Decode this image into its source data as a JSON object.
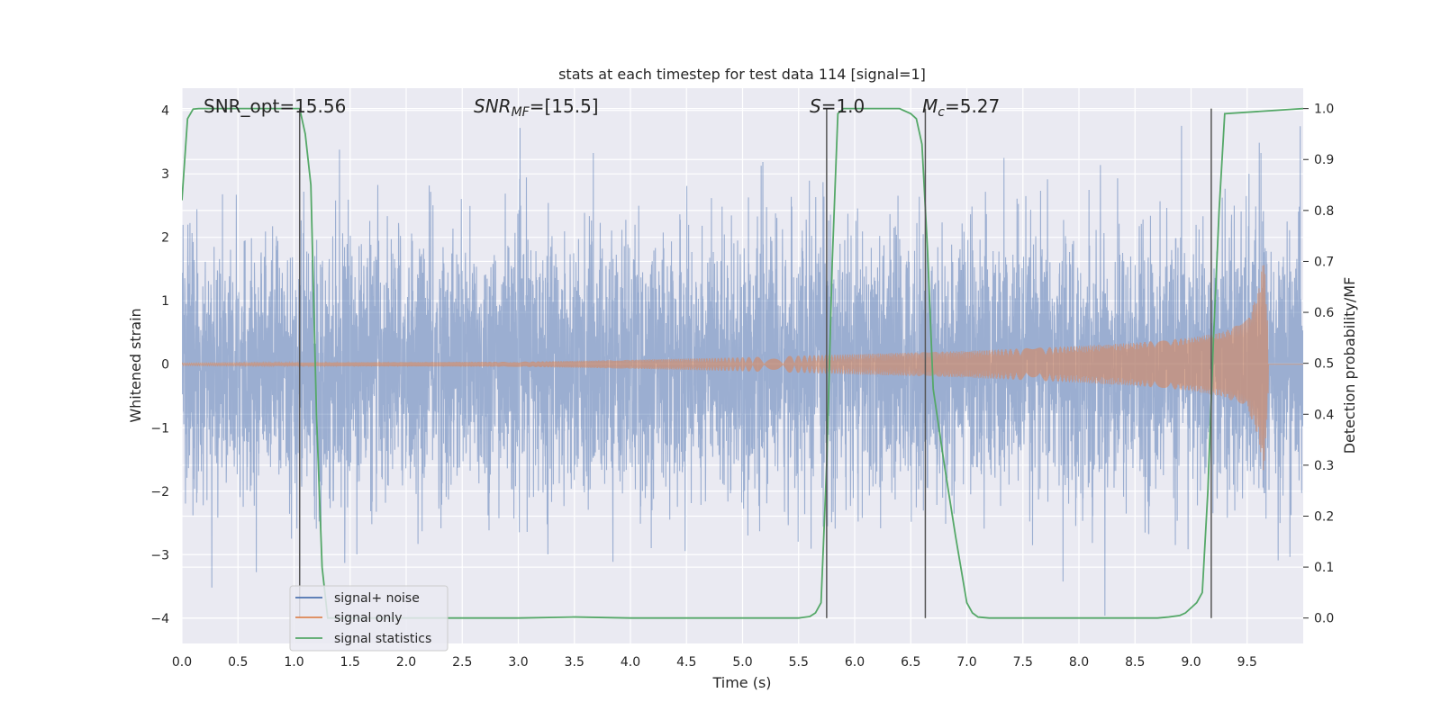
{
  "chart_data": {
    "type": "line",
    "title": "stats at each timestep for test data 114 [signal=1]",
    "xlabel": "Time (s)",
    "ylabel": "Whitened strain",
    "ylabel_right": "Detection probability/MF",
    "xlim": [
      0.0,
      10.0
    ],
    "ylim": [
      -4.4,
      4.35
    ],
    "ylim_right": [
      -0.05,
      1.04
    ],
    "x_ticks": [
      "0.0",
      "0.5",
      "1.0",
      "1.5",
      "2.0",
      "2.5",
      "3.0",
      "3.5",
      "4.0",
      "4.5",
      "5.0",
      "5.5",
      "6.0",
      "6.5",
      "7.0",
      "7.5",
      "8.0",
      "8.5",
      "9.0",
      "9.5"
    ],
    "y_ticks": [
      "4",
      "3",
      "2",
      "1",
      "0",
      "−1",
      "−2",
      "−3",
      "−4"
    ],
    "y_ticks_right": [
      "1.0",
      "0.9",
      "0.8",
      "0.7",
      "0.6",
      "0.5",
      "0.4",
      "0.3",
      "0.2",
      "0.1",
      "0.0"
    ],
    "annotations": {
      "snr_opt": "SNR_opt=15.56",
      "snr_mf_main": "SNR",
      "snr_mf_sub": "MF",
      "snr_mf_val": "=[15.5]",
      "s_main": "S",
      "s_val": "=1.0",
      "mc_main": "M",
      "mc_sub": "c",
      "mc_val": "=5.27"
    },
    "legend": [
      {
        "label": "signal+ noise",
        "color": "#4c72b0"
      },
      {
        "label": "signal only",
        "color": "#dd8452"
      },
      {
        "label": "signal statistics",
        "color": "#55a868"
      }
    ],
    "series": [
      {
        "name": "signal+ noise",
        "axis": "left",
        "color": "#4c72b0",
        "noise_std": 1.0,
        "typical_peak": 2.6,
        "max_excursion": 3.75,
        "min_excursion": -4.0
      },
      {
        "name": "signal only",
        "axis": "left",
        "color": "#dd8452",
        "chirp_envelope": {
          "t": [
            0.0,
            3.0,
            4.0,
            5.0,
            6.0,
            7.0,
            8.0,
            8.5,
            9.0,
            9.3,
            9.5,
            9.6,
            9.65,
            9.7
          ],
          "amp": [
            0.02,
            0.04,
            0.07,
            0.11,
            0.16,
            0.21,
            0.29,
            0.34,
            0.42,
            0.52,
            0.7,
            1.15,
            1.75,
            0.1
          ]
        },
        "merger_time": 9.66
      },
      {
        "name": "signal statistics",
        "axis": "right",
        "color": "#55a868",
        "x": [
          0.0,
          0.05,
          0.1,
          0.15,
          1.0,
          1.05,
          1.1,
          1.15,
          1.2,
          1.25,
          1.3,
          2.0,
          3.0,
          3.5,
          4.0,
          5.0,
          5.5,
          5.6,
          5.65,
          5.7,
          5.75,
          5.8,
          5.85,
          5.9,
          6.0,
          6.4,
          6.5,
          6.55,
          6.6,
          6.65,
          6.7,
          6.8,
          6.9,
          7.0,
          7.05,
          7.1,
          7.2,
          8.0,
          8.7,
          8.8,
          8.9,
          8.95,
          9.0,
          9.05,
          9.1,
          9.15,
          9.2,
          9.25,
          9.3,
          10.0
        ],
        "values": [
          0.82,
          0.98,
          0.999,
          1.0,
          1.0,
          1.0,
          0.95,
          0.85,
          0.4,
          0.1,
          0.0,
          0.0,
          0.0,
          0.002,
          0.0,
          0.0,
          0.0,
          0.003,
          0.01,
          0.03,
          0.3,
          0.7,
          0.99,
          1.0,
          1.0,
          1.0,
          0.99,
          0.98,
          0.93,
          0.72,
          0.45,
          0.3,
          0.16,
          0.03,
          0.01,
          0.002,
          0.0,
          0.0,
          0.0,
          0.002,
          0.005,
          0.01,
          0.02,
          0.03,
          0.05,
          0.25,
          0.55,
          0.8,
          0.99,
          1.0
        ]
      }
    ],
    "vlines": [
      {
        "x": 1.05,
        "ymin": 0.0,
        "ymax": 1.0
      },
      {
        "x": 5.75,
        "ymin": 0.0,
        "ymax": 1.0
      },
      {
        "x": 6.63,
        "ymin": 0.0,
        "ymax": 1.0
      },
      {
        "x": 9.18,
        "ymin": 0.0,
        "ymax": 1.0
      }
    ]
  }
}
